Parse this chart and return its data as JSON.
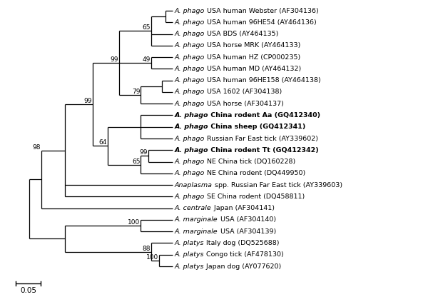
{
  "figsize": [
    6.0,
    4.23
  ],
  "dpi": 100,
  "taxa": [
    {
      "y": 23,
      "italic": "A. phago",
      "roman": " USA human Webster (AF304136)",
      "bold": false
    },
    {
      "y": 22,
      "italic": "A. phago",
      "roman": " USA human 96HE54 (AY464136)",
      "bold": false
    },
    {
      "y": 21,
      "italic": "A. phago",
      "roman": " USA BDS (AY464135)",
      "bold": false
    },
    {
      "y": 20,
      "italic": "A. phago",
      "roman": " USA horse MRK (AY464133)",
      "bold": false
    },
    {
      "y": 19,
      "italic": "A. phago",
      "roman": " USA human HZ (CP000235)",
      "bold": false
    },
    {
      "y": 18,
      "italic": "A. phago",
      "roman": " USA human MD (AY464132)",
      "bold": false
    },
    {
      "y": 17,
      "italic": "A. phago",
      "roman": " USA human 96HE158 (AY464138)",
      "bold": false
    },
    {
      "y": 16,
      "italic": "A. phago",
      "roman": " USA 1602 (AF304138)",
      "bold": false
    },
    {
      "y": 15,
      "italic": "A. phago",
      "roman": " USA horse (AF304137)",
      "bold": false
    },
    {
      "y": 14,
      "italic": "A. phago",
      "roman": " China rodent Aa (GQ412340)",
      "bold": true
    },
    {
      "y": 13,
      "italic": "A. phago",
      "roman": " China sheep (GQ412341)",
      "bold": true
    },
    {
      "y": 12,
      "italic": "A. phago",
      "roman": " Russian Far East tick (AY339602)",
      "bold": false
    },
    {
      "y": 11,
      "italic": "A. phago",
      "roman": " China rodent Tt (GQ412342)",
      "bold": true
    },
    {
      "y": 10,
      "italic": "A. phago",
      "roman": " NE China tick (DQ160228)",
      "bold": false
    },
    {
      "y": 9,
      "italic": "A. phago",
      "roman": " NE China rodent (DQ449950)",
      "bold": false
    },
    {
      "y": 8,
      "italic": "Anaplasma",
      "roman": " spp. Russian Far East tick (AY339603)",
      "bold": false
    },
    {
      "y": 7,
      "italic": "A. phago",
      "roman": " SE China rodent (DQ458811)",
      "bold": false
    },
    {
      "y": 6,
      "italic": "A. centrale",
      "roman": " Japan (AF304141)",
      "bold": false
    },
    {
      "y": 5,
      "italic": "A. marginale",
      "roman": " USA (AF304140)",
      "bold": false
    },
    {
      "y": 4,
      "italic": "A. marginale",
      "roman": " USA (AF304139)",
      "bold": false
    },
    {
      "y": 3,
      "italic": "A. platys",
      "roman": " Italy dog (DQ525688)",
      "bold": false
    },
    {
      "y": 2,
      "italic": "A. platys",
      "roman": " Congo tick (AF478130)",
      "bold": false
    },
    {
      "y": 1,
      "italic": "A. platys",
      "roman": " Japan dog (AY077620)",
      "bold": false
    }
  ],
  "label_fs": 6.8,
  "bs_fs": 6.5,
  "lw": 0.9,
  "scale_bar_value": "0.05"
}
